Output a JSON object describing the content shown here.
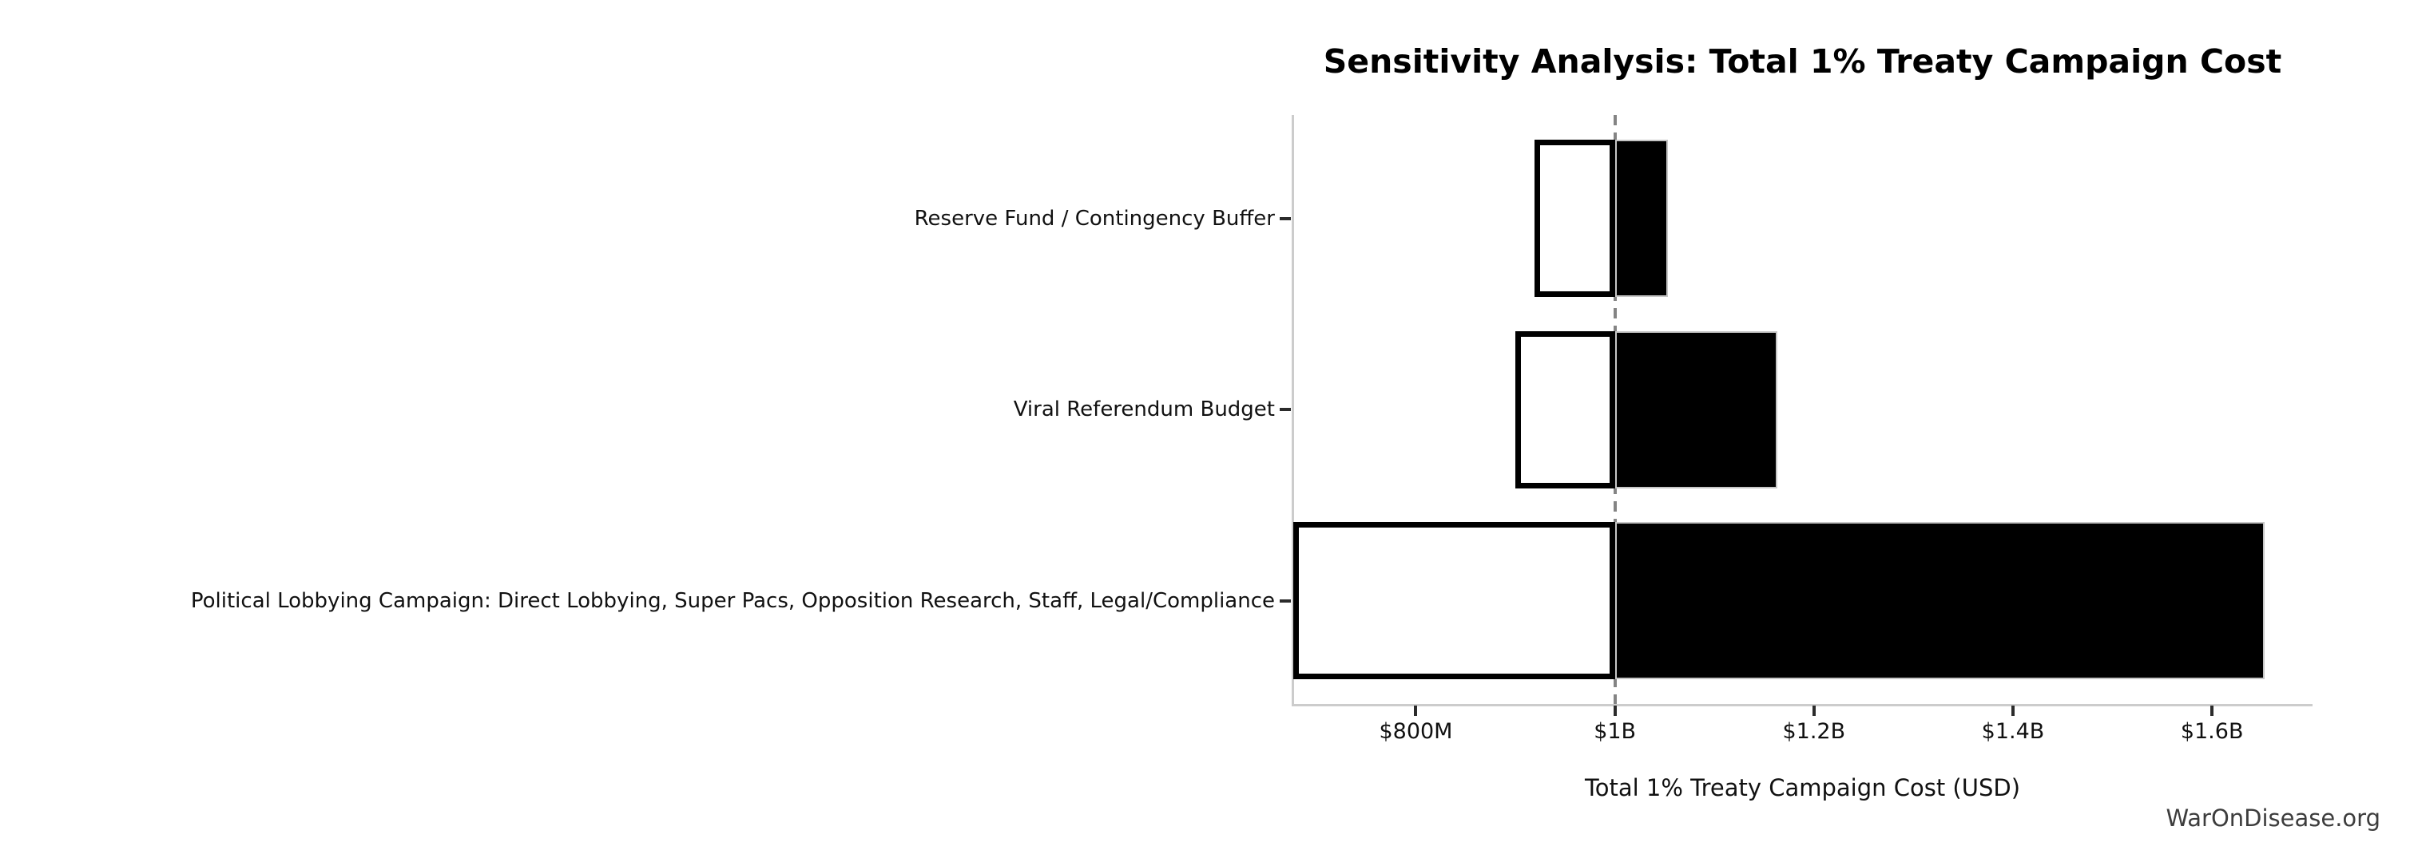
{
  "watermark": "WarOnDisease.org",
  "chart_data": {
    "type": "bar",
    "subtype": "tornado-sensitivity",
    "orientation": "horizontal",
    "title": "Sensitivity Analysis: Total 1% Treaty Campaign Cost",
    "xlabel": "Total 1% Treaty Campaign Cost (USD)",
    "ylabel": "",
    "unit": "USD millions",
    "base_value": 1000,
    "xlim": [
      676,
      1701
    ],
    "grid": false,
    "legend": "none",
    "reference_line": {
      "value": 1000,
      "style": "dashed",
      "color": "#848484"
    },
    "categories": [
      "Reserve Fund / Contingency Buffer",
      "Viral Referendum Budget",
      "Political Lobbying Campaign: Direct Lobbying, Super Pacs, Opposition Research, Staff, Legal/Compliance"
    ],
    "series": [
      {
        "name": "low",
        "fill": "#ffffff",
        "edge": "#000000",
        "values": [
          919,
          900,
          677
        ]
      },
      {
        "name": "high",
        "fill": "#000000",
        "edge": "#c6c6c6",
        "values": [
          1053,
          1163,
          1653
        ]
      }
    ],
    "x_ticks": [
      {
        "value": 800,
        "label": "$800M"
      },
      {
        "value": 1000,
        "label": "$1B"
      },
      {
        "value": 1200,
        "label": "$1.2B"
      },
      {
        "value": 1400,
        "label": "$1.4B"
      },
      {
        "value": 1600,
        "label": "$1.6B"
      }
    ],
    "colors": {
      "spine": "#cccccc",
      "tick": "#2b2b2b",
      "text": "#111111",
      "watermark": "#3d3d3d"
    }
  }
}
